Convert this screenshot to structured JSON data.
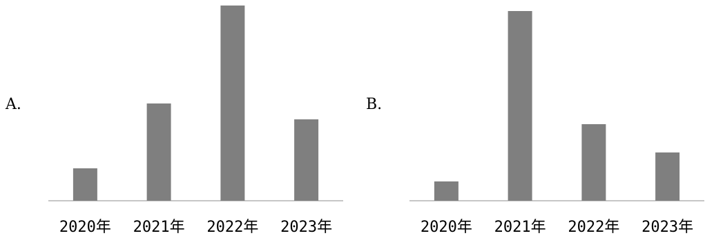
{
  "chart_data": [
    {
      "type": "bar",
      "option_label": "A.",
      "categories": [
        "2020年",
        "2021年",
        "2022年",
        "2023年"
      ],
      "values": [
        47,
        141,
        283,
        118
      ],
      "bar_color": "#7f7f7f",
      "axis_color": "#b3b3b3",
      "grid": false
    },
    {
      "type": "bar",
      "option_label": "B.",
      "categories": [
        "2020年",
        "2021年",
        "2022年",
        "2023年"
      ],
      "values": [
        28,
        275,
        111,
        70
      ],
      "bar_color": "#7f7f7f",
      "axis_color": "#b3b3b3",
      "grid": false
    }
  ]
}
